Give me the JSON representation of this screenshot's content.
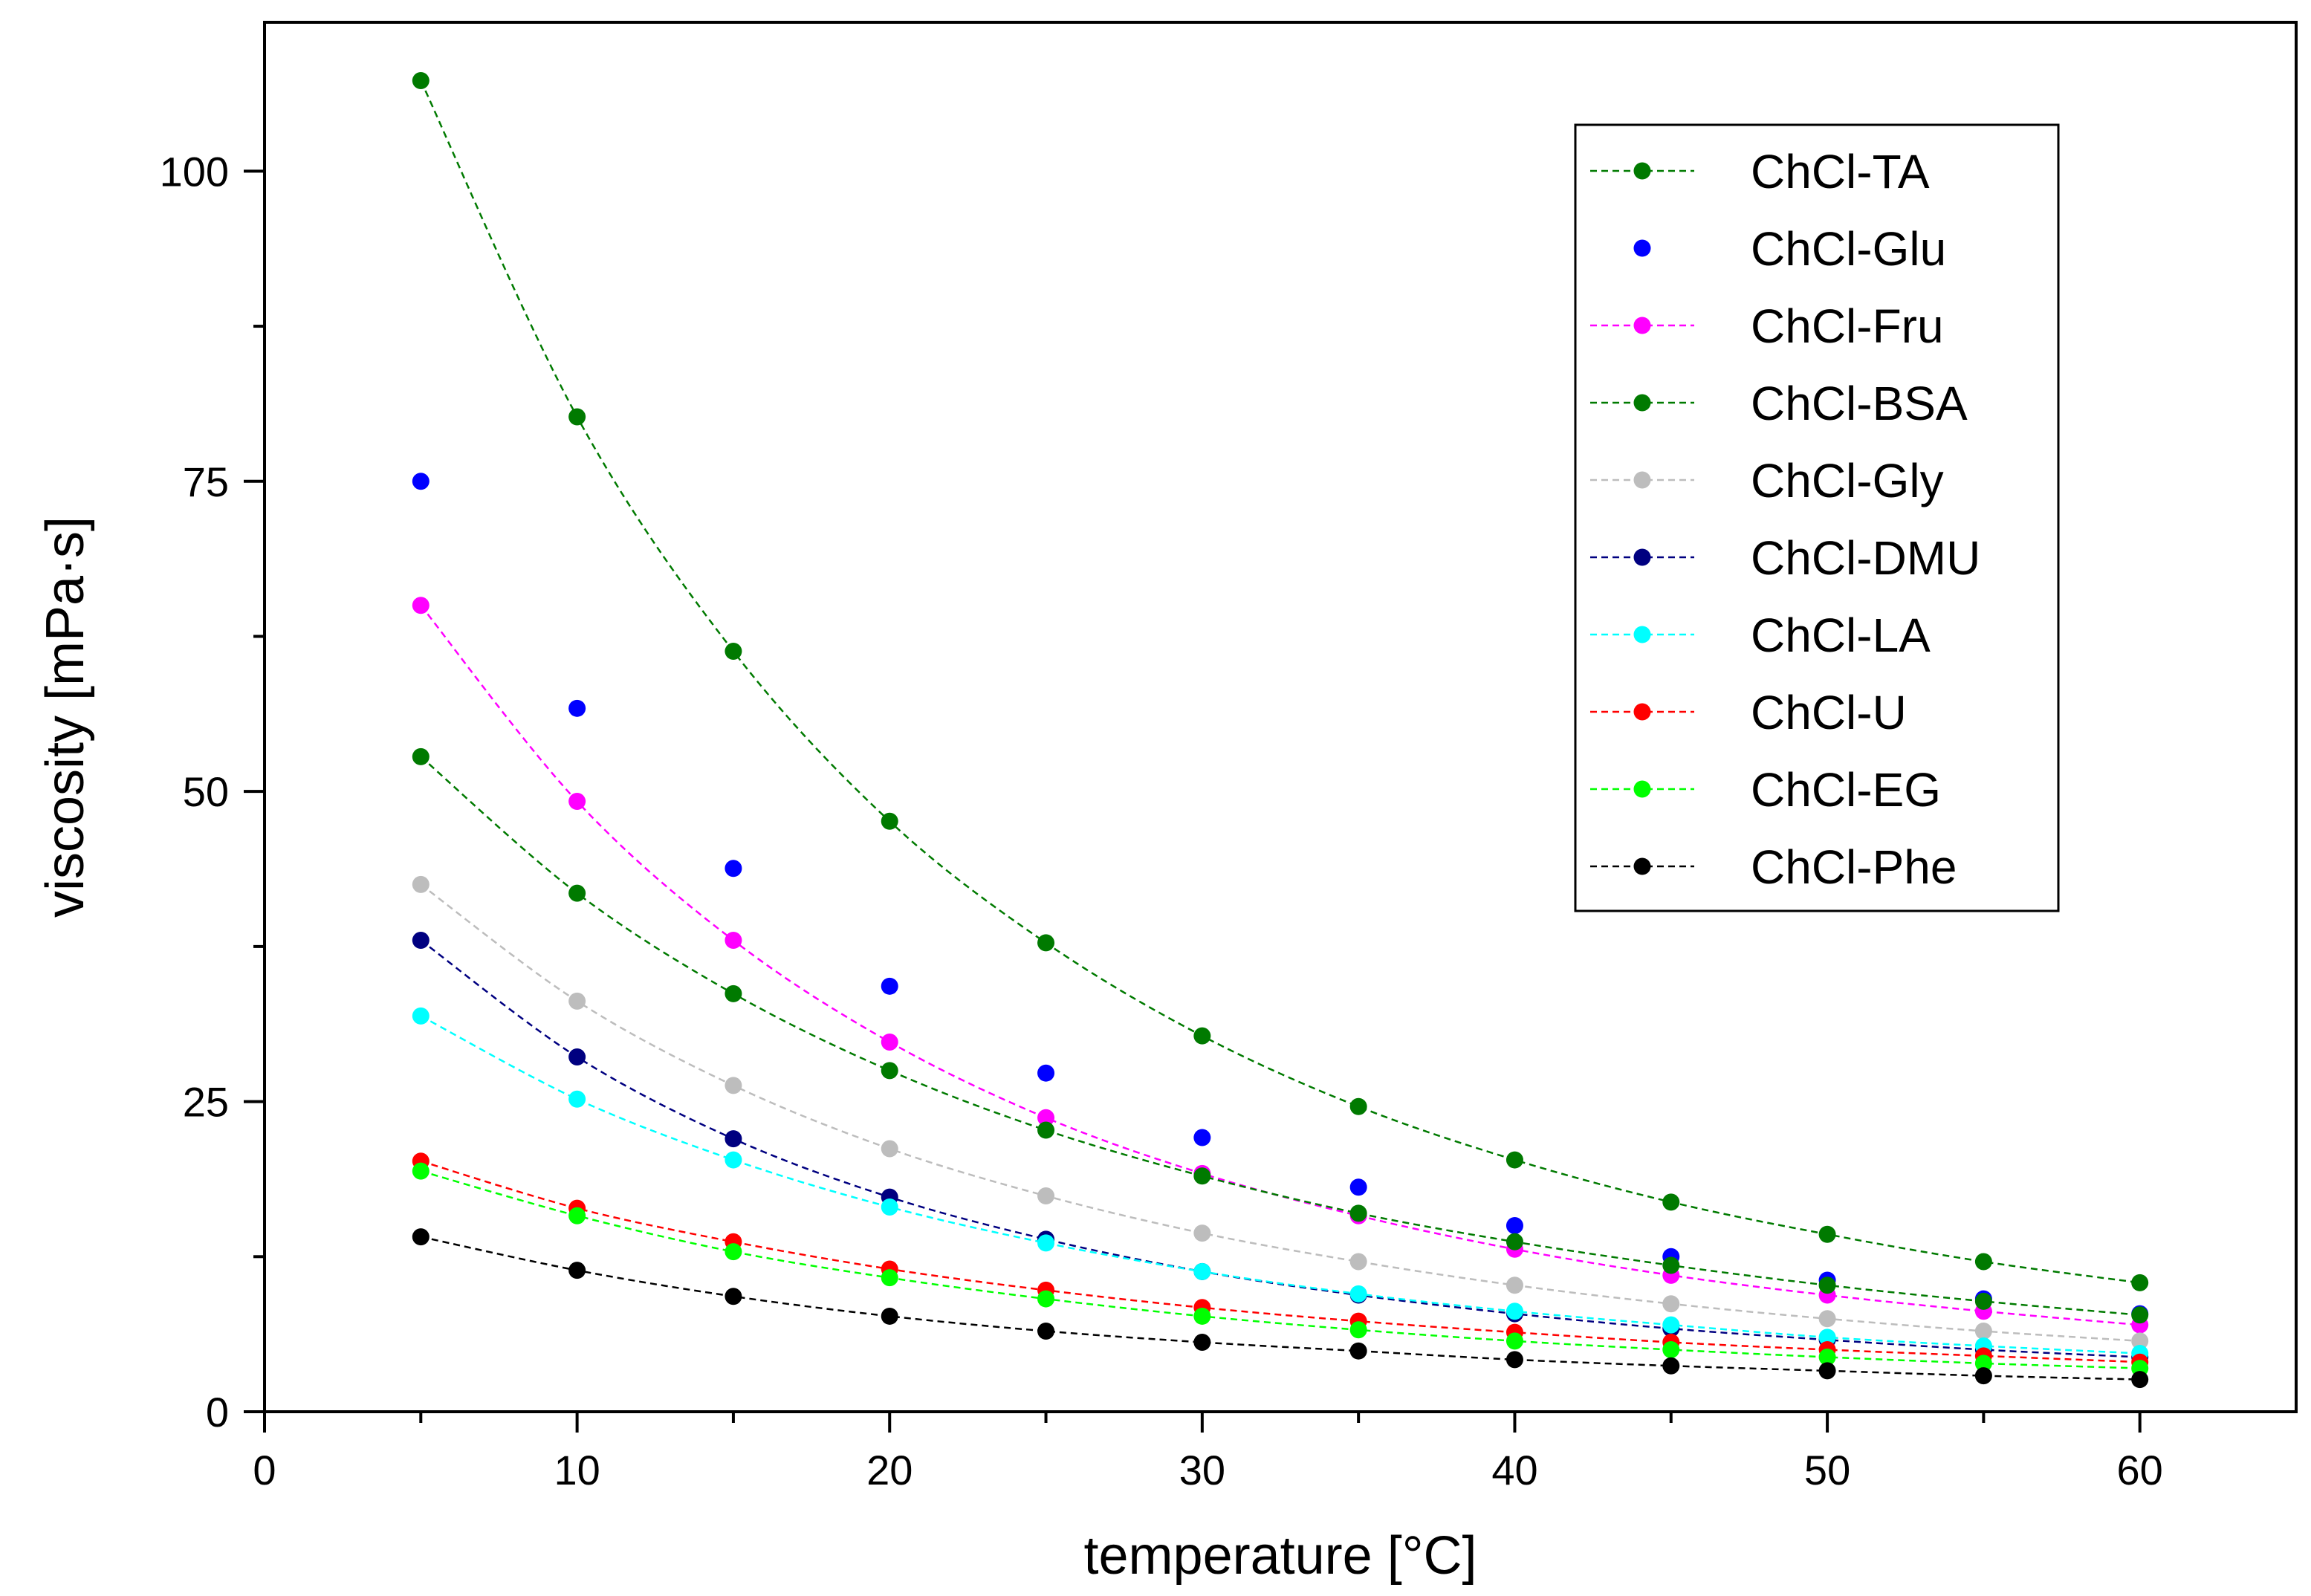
{
  "chart_data": {
    "type": "line",
    "title": "",
    "xlabel": "temperature [°C]",
    "ylabel": "viscosity [mPa·s]",
    "xlim": [
      0,
      65
    ],
    "ylim": [
      0,
      112
    ],
    "xticks": [
      0,
      10,
      20,
      30,
      40,
      50,
      60
    ],
    "yticks": [
      0,
      25,
      50,
      75,
      100
    ],
    "x": [
      5,
      10,
      15,
      20,
      25,
      30,
      35,
      40,
      45,
      50,
      55,
      60
    ],
    "legend_position": "top-right",
    "series": [
      {
        "name": "ChCl-TA",
        "color": "#007a00",
        "line": true,
        "values": [
          107.3,
          80.2,
          61.3,
          47.6,
          37.8,
          30.3,
          24.6,
          20.3,
          16.9,
          14.3,
          12.1,
          10.4
        ]
      },
      {
        "name": "ChCl-Glu",
        "color": "#0000ff",
        "line": false,
        "values": [
          75.0,
          56.7,
          43.8,
          34.3,
          27.3,
          22.1,
          18.1,
          15.0,
          12.5,
          10.6,
          9.1,
          7.9
        ]
      },
      {
        "name": "ChCl-Fru",
        "color": "#ff00ff",
        "line": true,
        "values": [
          65.0,
          49.2,
          38.0,
          29.8,
          23.7,
          19.2,
          15.8,
          13.1,
          11.0,
          9.4,
          8.1,
          7.0
        ]
      },
      {
        "name": "ChCl-BSA",
        "color": "#007a00",
        "line": true,
        "values": [
          52.8,
          41.8,
          33.7,
          27.5,
          22.7,
          19.0,
          16.0,
          13.7,
          11.8,
          10.2,
          8.9,
          7.8
        ]
      },
      {
        "name": "ChCl-Gly",
        "color": "#bdbdbd",
        "line": true,
        "values": [
          42.5,
          33.1,
          26.3,
          21.2,
          17.4,
          14.4,
          12.1,
          10.2,
          8.7,
          7.5,
          6.5,
          5.7
        ]
      },
      {
        "name": "ChCl-DMU",
        "color": "#000080",
        "line": true,
        "values": [
          38.0,
          28.6,
          22.0,
          17.3,
          13.9,
          11.3,
          9.4,
          7.9,
          6.7,
          5.8,
          5.0,
          4.4
        ]
      },
      {
        "name": "ChCl-LA",
        "color": "#00ffff",
        "line": true,
        "values": [
          31.9,
          25.2,
          20.3,
          16.5,
          13.6,
          11.3,
          9.5,
          8.1,
          7.0,
          6.0,
          5.3,
          4.7
        ]
      },
      {
        "name": "ChCl-U",
        "color": "#ff0000",
        "line": true,
        "values": [
          20.2,
          16.4,
          13.7,
          11.5,
          9.8,
          8.4,
          7.3,
          6.4,
          5.6,
          5.0,
          4.5,
          4.0
        ]
      },
      {
        "name": "ChCl-EG",
        "color": "#00ff00",
        "line": true,
        "values": [
          19.4,
          15.8,
          12.9,
          10.8,
          9.1,
          7.7,
          6.6,
          5.7,
          5.0,
          4.4,
          3.9,
          3.5
        ]
      },
      {
        "name": "ChCl-Phe",
        "color": "#000000",
        "line": true,
        "values": [
          14.1,
          11.4,
          9.3,
          7.7,
          6.5,
          5.6,
          4.9,
          4.2,
          3.7,
          3.3,
          2.9,
          2.6
        ]
      }
    ]
  }
}
